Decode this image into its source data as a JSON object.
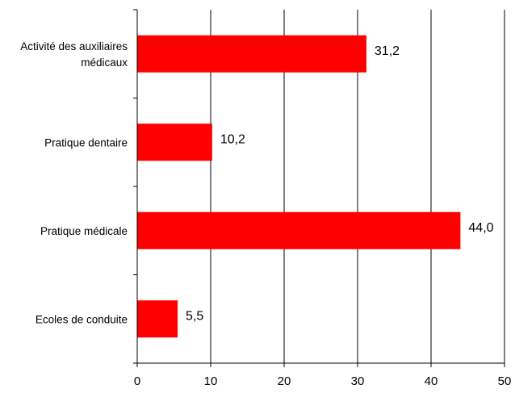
{
  "chart_data": {
    "type": "bar",
    "orientation": "horizontal",
    "categories": [
      [
        "Activité des auxiliaires",
        "médicaux"
      ],
      [
        "Pratique dentaire"
      ],
      [
        "Pratique médicale"
      ],
      [
        "Ecoles de conduite"
      ]
    ],
    "values": [
      31.2,
      10.2,
      44.0,
      5.5
    ],
    "value_labels": [
      "31,2",
      "10,2",
      "44,0",
      "5,5"
    ],
    "xlim": [
      0,
      50
    ],
    "x_ticks": [
      0,
      10,
      20,
      30,
      40,
      50
    ],
    "x_tick_labels": [
      "0",
      "10",
      "20",
      "30",
      "40",
      "50"
    ],
    "grid": "vertical",
    "legend": "none",
    "bar_color": "#ff0000"
  }
}
